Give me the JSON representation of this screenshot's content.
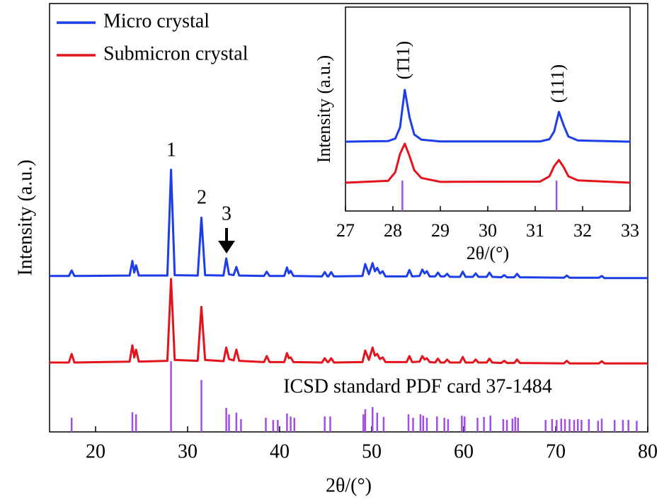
{
  "chart_data": [
    {
      "type": "line",
      "xlabel": "2θ/(°)",
      "ylabel": "Intensity (a.u.)",
      "xlim": [
        15,
        80
      ],
      "xticks": [
        20,
        30,
        40,
        50,
        60,
        70,
        80
      ],
      "ylim": [
        0,
        100
      ],
      "legend": "upper left",
      "x": [
        15,
        17.1,
        17.4,
        17.7,
        23.7,
        24.0,
        24.2,
        24.4,
        24.7,
        27.8,
        28.2,
        28.6,
        31.1,
        31.5,
        31.9,
        33.9,
        34.2,
        34.5,
        35.0,
        35.3,
        35.6,
        38.3,
        38.6,
        38.9,
        40.5,
        40.8,
        41.0,
        41.2,
        41.5,
        44.6,
        44.9,
        45.2,
        45.3,
        45.6,
        45.9,
        49.0,
        49.3,
        49.7,
        50.1,
        50.35,
        50.6,
        50.9,
        51.2,
        51.5,
        53.8,
        54.1,
        54.4,
        55.2,
        55.5,
        55.75,
        56.0,
        56.3,
        56.9,
        57.2,
        57.5,
        57.9,
        58.2,
        58.5,
        59.6,
        59.9,
        60.2,
        61.0,
        61.3,
        61.6,
        62.5,
        62.8,
        63.1,
        64.1,
        64.4,
        64.7,
        65.5,
        65.8,
        66.1,
        70.9,
        71.2,
        71.5,
        74.7,
        75.0,
        75.3,
        80
      ],
      "series": [
        {
          "name": "Micro crystal",
          "color": "#1c3de8",
          "values": [
            36.4,
            36.4,
            37.7,
            36.4,
            36.5,
            39.9,
            37.2,
            38.9,
            36.5,
            36.5,
            61.2,
            36.6,
            36.5,
            50.0,
            36.6,
            36.5,
            40.5,
            36.8,
            36.6,
            38.5,
            36.5,
            36.4,
            37.4,
            36.4,
            36.4,
            38.4,
            37.0,
            37.6,
            36.4,
            36.3,
            37.3,
            36.3,
            36.3,
            37.3,
            36.3,
            36.4,
            39.2,
            36.8,
            39.4,
            37.5,
            38.3,
            37.0,
            37.5,
            36.3,
            36.3,
            37.8,
            36.3,
            36.4,
            37.9,
            37.0,
            37.5,
            36.3,
            36.3,
            37.2,
            36.3,
            36.3,
            36.9,
            36.2,
            36.2,
            37.4,
            36.2,
            36.2,
            37.0,
            36.2,
            36.2,
            37.2,
            36.2,
            36.1,
            36.6,
            36.1,
            36.1,
            36.9,
            36.1,
            36.0,
            36.5,
            36.0,
            36.0,
            36.4,
            35.9,
            35.9
          ]
        },
        {
          "name": "Submicron crystal",
          "color": "#e3141c",
          "values": [
            16.2,
            16.2,
            18.2,
            16.2,
            16.4,
            20.2,
            17.4,
            19.2,
            16.4,
            16.6,
            35.7,
            16.8,
            16.6,
            29.2,
            16.8,
            16.5,
            19.7,
            17.0,
            16.7,
            19.2,
            16.6,
            16.3,
            17.7,
            16.3,
            16.3,
            18.4,
            17.2,
            17.4,
            16.3,
            16.2,
            17.2,
            16.3,
            16.3,
            17.2,
            16.2,
            16.3,
            19.0,
            16.8,
            19.7,
            17.8,
            18.2,
            17.0,
            17.4,
            16.3,
            16.3,
            17.7,
            16.3,
            16.4,
            17.7,
            16.9,
            17.2,
            16.3,
            16.2,
            17.1,
            16.2,
            16.2,
            16.9,
            16.2,
            16.2,
            17.5,
            16.2,
            16.2,
            16.9,
            16.2,
            16.2,
            17.1,
            16.2,
            16.1,
            16.6,
            16.1,
            16.1,
            16.9,
            16.1,
            16.0,
            16.6,
            16.0,
            16.0,
            16.5,
            16.0,
            16.0
          ]
        }
      ],
      "reference": {
        "name": "ICSD standard PDF card 37-1484",
        "color": "#a24ee6",
        "x": [
          17.4,
          24.0,
          24.4,
          28.2,
          31.5,
          34.2,
          34.5,
          35.3,
          35.8,
          38.5,
          39.3,
          39.8,
          40.8,
          41.2,
          41.6,
          44.9,
          45.5,
          49.1,
          49.3,
          50.1,
          50.6,
          51.3,
          54.0,
          54.5,
          55.3,
          55.6,
          56.0,
          57.1,
          57.9,
          58.3,
          59.8,
          60.1,
          61.5,
          62.2,
          62.9,
          64.3,
          64.7,
          65.3,
          65.6,
          65.9,
          68.9,
          69.6,
          70.1,
          70.6,
          71.0,
          71.5,
          72.0,
          72.4,
          72.8,
          73.6,
          74.6,
          75.0,
          76.4,
          77.3,
          77.9,
          78.8
        ],
        "values": [
          3.3,
          4.6,
          4.1,
          16.5,
          12.1,
          5.6,
          4.1,
          4.5,
          3.0,
          3.3,
          2.8,
          2.8,
          4.3,
          3.6,
          3.3,
          3.6,
          3.6,
          4.1,
          5.3,
          5.8,
          4.5,
          3.5,
          4.1,
          3.3,
          4.1,
          3.8,
          3.3,
          3.6,
          3.3,
          3.0,
          3.8,
          3.6,
          3.3,
          3.5,
          3.8,
          3.0,
          2.8,
          3.1,
          3.5,
          3.3,
          2.8,
          3.0,
          2.8,
          3.1,
          3.0,
          3.0,
          2.8,
          3.0,
          2.8,
          3.0,
          2.6,
          3.1,
          2.8,
          2.8,
          2.8,
          2.6
        ]
      },
      "annotations": [
        "1",
        "2",
        "3"
      ]
    },
    {
      "type": "line",
      "xlabel": "2θ/(°)",
      "ylabel": "Intensity (a.u.)",
      "xlim": [
        27,
        33
      ],
      "xticks": [
        27,
        28,
        29,
        30,
        31,
        32,
        33
      ],
      "ylim": [
        0,
        100
      ],
      "x": [
        27,
        27.9,
        28.05,
        28.15,
        28.25,
        28.35,
        28.45,
        28.6,
        29,
        31.1,
        31.3,
        31.4,
        31.5,
        31.6,
        31.7,
        31.9,
        33
      ],
      "series": [
        {
          "color": "#1c3de8",
          "values": [
            34.0,
            34.3,
            35.5,
            41,
            59.4,
            46,
            37.5,
            35,
            34.1,
            34.1,
            35.2,
            39,
            48.6,
            42,
            36.5,
            34.6,
            34.0
          ]
        },
        {
          "color": "#e3141c",
          "values": [
            13.9,
            14.8,
            19,
            28,
            33,
            27,
            20,
            16.2,
            14.3,
            14.4,
            17,
            22,
            25,
            21.5,
            17,
            15,
            13.9
          ]
        }
      ],
      "reference": {
        "color": "#a24ee6",
        "x": [
          28.2,
          31.45
        ],
        "values": [
          14.9,
          14.9
        ]
      },
      "annotations": [
        "(1̄11)",
        "(111)"
      ]
    }
  ]
}
